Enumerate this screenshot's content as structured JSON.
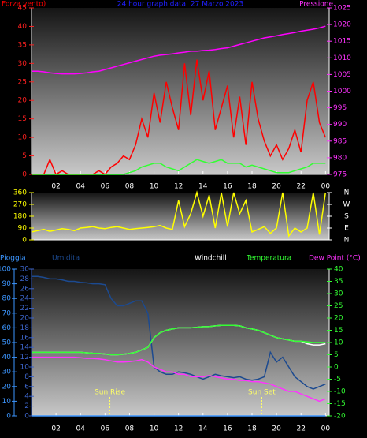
{
  "chart_data": [
    {
      "type": "line",
      "title": "24 hour graph data: 27 Marzo 2023",
      "ylabel": "Forza vento)",
      "y2label": "Pressione",
      "x": [
        0,
        0.5,
        1,
        1.5,
        2,
        2.5,
        3,
        3.5,
        4,
        4.5,
        5,
        5.5,
        6,
        6.5,
        7,
        7.5,
        8,
        8.5,
        9,
        9.5,
        10,
        10.5,
        11,
        11.5,
        12,
        12.5,
        13,
        13.5,
        14,
        14.5,
        15,
        15.5,
        16,
        16.5,
        17,
        17.5,
        18,
        18.5,
        19,
        19.5,
        20,
        20.5,
        21,
        21.5,
        22,
        22.5,
        23,
        23.5,
        24
      ],
      "xlim": [
        0,
        24.3
      ],
      "xticks": [
        {
          "value": 2,
          "label": "02"
        },
        {
          "value": 4,
          "label": "04"
        },
        {
          "value": 6,
          "label": "06"
        },
        {
          "value": 8,
          "label": "08"
        },
        10,
        12,
        14,
        16,
        18,
        20,
        22,
        {
          "value": 24,
          "label": "00"
        }
      ],
      "ylim": [
        0,
        45
      ],
      "yticks": [
        0,
        5,
        10,
        15,
        20,
        25,
        30,
        35,
        40,
        45
      ],
      "y2lim": [
        975,
        1025
      ],
      "y2ticks": [
        975,
        980,
        985,
        990,
        995,
        1000,
        1005,
        1010,
        1015,
        1020,
        1025
      ],
      "series": [
        {
          "color": "#ff0000",
          "values": [
            0,
            0,
            0,
            4,
            0,
            1,
            0,
            0,
            0,
            0,
            0,
            1,
            0,
            2,
            3,
            5,
            4,
            8,
            15,
            10,
            22,
            14,
            25,
            18,
            12,
            30,
            16,
            31,
            20,
            28,
            12,
            18,
            24,
            10,
            21,
            8,
            25,
            15,
            9,
            5,
            8,
            4,
            7,
            12,
            6,
            20,
            25,
            14,
            10
          ]
        },
        {
          "color": "#33ff33",
          "values": [
            0,
            0,
            0,
            0,
            0,
            0,
            0,
            0,
            0,
            0,
            0,
            0,
            0,
            0,
            0,
            0,
            0.5,
            1,
            2,
            2.5,
            3,
            3,
            2,
            1.5,
            1,
            2,
            3,
            4,
            3.5,
            3,
            3.5,
            4,
            3,
            3,
            3,
            2,
            2.5,
            2,
            1.5,
            1,
            0.5,
            0.5,
            0.5,
            1,
            1.5,
            2,
            3,
            3,
            3
          ]
        },
        {
          "color": "#ff00ff",
          "axis": "y2",
          "values": [
            1006,
            1006,
            1005.8,
            1005.5,
            1005.3,
            1005.2,
            1005.2,
            1005.2,
            1005.3,
            1005.5,
            1005.8,
            1006,
            1006.5,
            1007,
            1007.5,
            1008,
            1008.5,
            1009,
            1009.5,
            1010,
            1010.5,
            1010.8,
            1011,
            1011.2,
            1011.5,
            1011.7,
            1012,
            1012,
            1012.2,
            1012.3,
            1012.5,
            1012.8,
            1013,
            1013.5,
            1014,
            1014.5,
            1015,
            1015.5,
            1016,
            1016.3,
            1016.6,
            1017,
            1017.3,
            1017.6,
            1018,
            1018.3,
            1018.6,
            1019,
            1019.5
          ]
        }
      ]
    },
    {
      "type": "line",
      "x": [
        0,
        0.5,
        1,
        1.5,
        2,
        2.5,
        3,
        3.5,
        4,
        4.5,
        5,
        5.5,
        6,
        6.5,
        7,
        7.5,
        8,
        8.5,
        9,
        9.5,
        10,
        10.5,
        11,
        11.5,
        12,
        12.5,
        13,
        13.5,
        14,
        14.5,
        15,
        15.5,
        16,
        16.5,
        17,
        17.5,
        18,
        18.5,
        19,
        19.5,
        20,
        20.5,
        21,
        21.5,
        22,
        22.5,
        23,
        23.5,
        24
      ],
      "xlim": [
        0,
        24.3
      ],
      "ylim": [
        0,
        360
      ],
      "yticks": [
        0,
        90,
        180,
        270,
        360
      ],
      "y2lim": [
        0,
        360
      ],
      "y2ticks": [
        {
          "value": 0,
          "label": "N"
        },
        {
          "value": 90,
          "label": "E"
        },
        {
          "value": 180,
          "label": "S"
        },
        {
          "value": 270,
          "label": "W"
        },
        {
          "value": 360,
          "label": "N"
        }
      ],
      "series": [
        {
          "color": "#ffff00",
          "values": [
            60,
            70,
            80,
            65,
            75,
            85,
            80,
            70,
            90,
            95,
            100,
            90,
            85,
            95,
            100,
            90,
            80,
            85,
            90,
            95,
            100,
            110,
            90,
            80,
            300,
            100,
            200,
            360,
            180,
            340,
            90,
            360,
            100,
            360,
            200,
            300,
            60,
            80,
            100,
            50,
            90,
            360,
            30,
            90,
            60,
            90,
            360,
            40,
            360
          ]
        }
      ]
    },
    {
      "type": "line",
      "x": [
        0,
        0.5,
        1,
        1.5,
        2,
        2.5,
        3,
        3.5,
        4,
        4.5,
        5,
        5.5,
        6,
        6.5,
        7,
        7.5,
        8,
        8.5,
        9,
        9.5,
        10,
        10.5,
        11,
        11.5,
        12,
        12.5,
        13,
        13.5,
        14,
        14.5,
        15,
        15.5,
        16,
        16.5,
        17,
        17.5,
        18,
        18.5,
        19,
        19.5,
        20,
        20.5,
        21,
        21.5,
        22,
        22.5,
        23,
        23.5,
        24
      ],
      "xlim": [
        0,
        24.3
      ],
      "xticks": [
        {
          "value": 2,
          "label": "02"
        },
        {
          "value": 4,
          "label": "04"
        },
        {
          "value": 6,
          "label": "06"
        },
        {
          "value": 8,
          "label": "08"
        },
        10,
        12,
        14,
        16,
        18,
        20,
        22,
        {
          "value": 24,
          "label": "00"
        }
      ],
      "ylim": [
        0,
        100
      ],
      "yticks": [
        0,
        10,
        20,
        30,
        40,
        50,
        60,
        70,
        80,
        90,
        100
      ],
      "y3lim": [
        0,
        30
      ],
      "y3ticks": [
        0,
        2,
        4,
        6,
        8,
        10,
        12,
        14,
        16,
        18,
        20,
        22,
        24,
        26,
        28,
        30
      ],
      "y2lim": [
        -20,
        40
      ],
      "y2ticks": [
        -20,
        -15,
        -10,
        -5,
        0,
        5,
        10,
        15,
        20,
        25,
        30,
        35,
        40
      ],
      "annotations": [
        {
          "text": "Sun Rise",
          "x": 6.4
        },
        {
          "text": "Sun Set",
          "x": 18.8
        }
      ],
      "series": [
        {
          "name": "Pioggia",
          "color": "#3c96ff",
          "values": [
            0,
            0,
            0,
            0,
            0,
            0,
            0,
            0,
            0,
            0,
            0,
            0,
            0,
            0,
            0,
            0,
            0,
            0,
            0,
            0,
            0,
            0,
            0,
            0,
            0,
            0,
            0,
            0,
            0,
            0,
            0,
            0,
            0,
            0,
            0,
            0,
            0,
            0,
            0,
            0,
            0,
            0,
            0,
            0,
            0,
            0,
            0,
            0,
            0
          ]
        },
        {
          "name": "Umidita",
          "color": "#1c4a90",
          "axis": "y3",
          "values": [
            28.5,
            28.5,
            28.3,
            28,
            28,
            27.8,
            27.5,
            27.5,
            27.3,
            27.2,
            27,
            27,
            26.8,
            24,
            22.5,
            22.5,
            23,
            23.5,
            23.5,
            21,
            10,
            9,
            8.5,
            8.5,
            9,
            8.8,
            8.5,
            8,
            7.5,
            8,
            8.5,
            8.2,
            8,
            7.8,
            8,
            7.5,
            7.3,
            7.5,
            8,
            13,
            11,
            12,
            10,
            8,
            7,
            6,
            5.5,
            6,
            6.5
          ]
        },
        {
          "name": "Windchill",
          "color": "#ffffff",
          "axis": "y2",
          "values": [
            6,
            6,
            6,
            6,
            6,
            6,
            6,
            6,
            6,
            5.8,
            5.6,
            5.5,
            5.3,
            5,
            5,
            5.2,
            5.5,
            6,
            7,
            8,
            12,
            14,
            15,
            15.5,
            16,
            16,
            16,
            16.2,
            16.5,
            16.5,
            16.8,
            17,
            17,
            17,
            16.8,
            16,
            15.5,
            15,
            14,
            13,
            12,
            11.5,
            11,
            10.5,
            10.5,
            9.5,
            9,
            9,
            9.5
          ]
        },
        {
          "name": "Temperatura",
          "color": "#33ff33",
          "axis": "y2",
          "values": [
            6,
            6,
            6,
            6,
            6,
            6,
            6,
            6,
            6,
            5.8,
            5.6,
            5.5,
            5.3,
            5,
            5,
            5.2,
            5.5,
            6,
            7,
            8,
            12,
            14,
            15,
            15.5,
            16,
            16,
            16,
            16.2,
            16.5,
            16.5,
            16.8,
            17,
            17,
            17,
            16.8,
            16,
            15.5,
            15,
            14,
            13,
            12,
            11.5,
            11,
            10.5,
            10.5,
            10.3,
            10,
            10,
            10
          ]
        },
        {
          "name": "Dew Point (°C)",
          "color": "#ff33ff",
          "axis": "y2",
          "values": [
            4,
            4,
            4,
            4,
            4,
            4,
            4,
            4,
            3.8,
            3.5,
            3.5,
            3.3,
            3,
            2.5,
            2,
            2,
            2.2,
            2.5,
            3,
            2,
            0,
            -1,
            -2,
            -2,
            -3,
            -3,
            -4,
            -4,
            -4,
            -3.5,
            -4,
            -4.5,
            -5,
            -5,
            -5.5,
            -5.5,
            -6,
            -6,
            -6.5,
            -7,
            -8,
            -9,
            -10,
            -10,
            -11,
            -12,
            -13,
            -14,
            -13
          ]
        }
      ]
    }
  ]
}
